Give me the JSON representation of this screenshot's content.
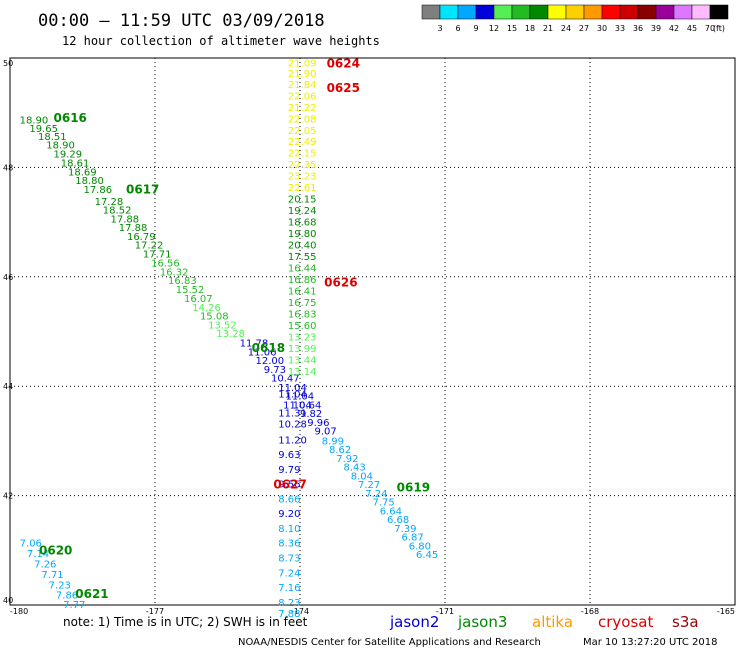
{
  "title": "00:00 – 11:59 UTC 03/09/2018",
  "subtitle": "12 hour collection of altimeter wave heights",
  "legend": {
    "unit": "(ft)",
    "bins": [
      {
        "label": "3",
        "color": "#7f7f7f"
      },
      {
        "label": "6",
        "color": "#00e5ff"
      },
      {
        "label": "9",
        "color": "#00a8ff"
      },
      {
        "label": "12",
        "color": "#0000dd"
      },
      {
        "label": "15",
        "color": "#55ee55"
      },
      {
        "label": "18",
        "color": "#22bb22"
      },
      {
        "label": "21",
        "color": "#008800"
      },
      {
        "label": "24",
        "color": "#ffff00"
      },
      {
        "label": "27",
        "color": "#ffd000"
      },
      {
        "label": "30",
        "color": "#ff9900"
      },
      {
        "label": "33",
        "color": "#ff0000"
      },
      {
        "label": "36",
        "color": "#cc0000"
      },
      {
        "label": "39",
        "color": "#880000"
      },
      {
        "label": "42",
        "color": "#990099"
      },
      {
        "label": "45",
        "color": "#dd77ff"
      },
      {
        "label": "70",
        "color": "#ffbbff"
      },
      {
        "label": "",
        "color": "#000000"
      }
    ]
  },
  "note": "note: 1) Time is in UTC; 2) SWH is in feet",
  "satellites": [
    {
      "name": "jason2",
      "color": "#0000cc"
    },
    {
      "name": "jason3",
      "color": "#008800"
    },
    {
      "name": "altika",
      "color": "#ff9900"
    },
    {
      "name": "cryosat",
      "color": "#dd0000"
    },
    {
      "name": "s3a",
      "color": "#990000"
    }
  ],
  "footer_left": "NOAA/NESDIS Center for Satellite Applications and Research",
  "footer_right": "Mar 10 13:27:20 UTC 2018",
  "chart_data": {
    "type": "scatter",
    "title": "00:00 – 11:59 UTC 03/09/2018",
    "subtitle": "12 hour collection of altimeter wave heights",
    "xlim": [
      -180,
      -165
    ],
    "ylim": [
      40,
      50
    ],
    "x_ticks": [
      -180,
      -177,
      -174,
      -171,
      -168,
      -165
    ],
    "y_ticks": [
      40,
      42,
      44,
      46,
      48,
      50
    ],
    "x_tick_labels": [
      "-180",
      "-177",
      "-174",
      "-171",
      "-168",
      "-165"
    ],
    "y_tick_labels": [
      "40",
      "42",
      "44",
      "46",
      "48",
      "50"
    ],
    "grid": true,
    "value_unit": "ft",
    "pass_labels": [
      {
        "text": "0624",
        "lon": -173.45,
        "lat": 49.9,
        "color": "#dd0000"
      },
      {
        "text": "0625",
        "lon": -173.45,
        "lat": 49.45,
        "color": "#dd0000"
      },
      {
        "text": "0616",
        "lon": -179.1,
        "lat": 48.9,
        "color": "#008800"
      },
      {
        "text": "0617",
        "lon": -177.6,
        "lat": 47.6,
        "color": "#008800"
      },
      {
        "text": "0626",
        "lon": -173.5,
        "lat": 45.9,
        "color": "#dd0000"
      },
      {
        "text": "0618",
        "lon": -175.0,
        "lat": 44.7,
        "color": "#008800"
      },
      {
        "text": "0627",
        "lon": -174.55,
        "lat": 42.2,
        "color": "#dd0000"
      },
      {
        "text": "0619",
        "lon": -172.0,
        "lat": 42.15,
        "color": "#008800"
      },
      {
        "text": "0620",
        "lon": -179.4,
        "lat": 41.0,
        "color": "#008800"
      },
      {
        "text": "0621",
        "lon": -178.65,
        "lat": 40.2,
        "color": "#008800"
      }
    ],
    "series": [
      {
        "name": "0616",
        "points": [
          {
            "lon": -179.8,
            "lat": 48.86,
            "v": "18.90",
            "color": "#008800"
          },
          {
            "lon": -179.6,
            "lat": 48.7,
            "v": "19.65",
            "color": "#008800"
          },
          {
            "lon": -179.42,
            "lat": 48.56,
            "v": "18.51",
            "color": "#008800"
          },
          {
            "lon": -179.25,
            "lat": 48.4,
            "v": "18.90",
            "color": "#008800"
          },
          {
            "lon": -179.1,
            "lat": 48.24,
            "v": "19.29",
            "color": "#008800"
          },
          {
            "lon": -178.95,
            "lat": 48.07,
            "v": "18.61",
            "color": "#008800"
          },
          {
            "lon": -178.8,
            "lat": 47.91,
            "v": "18.69",
            "color": "#008800"
          },
          {
            "lon": -178.65,
            "lat": 47.75,
            "v": "18.80",
            "color": "#008800"
          },
          {
            "lon": -178.48,
            "lat": 47.59,
            "v": "17.86",
            "color": "#008800"
          }
        ]
      },
      {
        "name": "0617",
        "points": [
          {
            "lon": -178.25,
            "lat": 47.37,
            "v": "17.28",
            "color": "#008800"
          },
          {
            "lon": -178.08,
            "lat": 47.21,
            "v": "18.52",
            "color": "#008800"
          },
          {
            "lon": -177.92,
            "lat": 47.05,
            "v": "17.88",
            "color": "#008800"
          },
          {
            "lon": -177.75,
            "lat": 46.89,
            "v": "17.88",
            "color": "#008800"
          },
          {
            "lon": -177.58,
            "lat": 46.73,
            "v": "16.79",
            "color": "#008800"
          },
          {
            "lon": -177.42,
            "lat": 46.57,
            "v": "17.22",
            "color": "#008800"
          },
          {
            "lon": -177.25,
            "lat": 46.41,
            "v": "17.71",
            "color": "#008800"
          },
          {
            "lon": -177.08,
            "lat": 46.24,
            "v": "16.56",
            "color": "#22bb22"
          },
          {
            "lon": -176.9,
            "lat": 46.08,
            "v": "16.32",
            "color": "#22bb22"
          },
          {
            "lon": -176.73,
            "lat": 45.92,
            "v": "16.83",
            "color": "#22bb22"
          },
          {
            "lon": -176.57,
            "lat": 45.76,
            "v": "15.52",
            "color": "#22bb22"
          },
          {
            "lon": -176.4,
            "lat": 45.59,
            "v": "16.07",
            "color": "#22bb22"
          },
          {
            "lon": -176.23,
            "lat": 45.43,
            "v": "14.26",
            "color": "#55ee55"
          },
          {
            "lon": -176.07,
            "lat": 45.27,
            "v": "15.08",
            "color": "#22bb22"
          },
          {
            "lon": -175.9,
            "lat": 45.11,
            "v": "13.52",
            "color": "#55ee55"
          },
          {
            "lon": -175.73,
            "lat": 44.95,
            "v": "13.28",
            "color": "#55ee55"
          }
        ]
      },
      {
        "name": "0618",
        "points": [
          {
            "lon": -175.25,
            "lat": 44.78,
            "v": "11.78",
            "color": "#0000dd"
          },
          {
            "lon": -175.08,
            "lat": 44.62,
            "v": "11.06",
            "color": "#0000dd"
          },
          {
            "lon": -174.92,
            "lat": 44.46,
            "v": "12.00",
            "color": "#0000dd"
          },
          {
            "lon": -174.75,
            "lat": 44.3,
            "v": "9.73",
            "color": "#0000dd"
          },
          {
            "lon": -174.6,
            "lat": 44.14,
            "v": "10.47",
            "color": "#0000dd"
          },
          {
            "lon": -174.45,
            "lat": 43.97,
            "v": "11.04",
            "color": "#0000dd"
          },
          {
            "lon": -174.3,
            "lat": 43.81,
            "v": "11.04",
            "color": "#0000dd"
          },
          {
            "lon": -174.15,
            "lat": 43.65,
            "v": "10.64",
            "color": "#0000dd"
          },
          {
            "lon": -174.0,
            "lat": 43.49,
            "v": "9.82",
            "color": "#0000dd"
          },
          {
            "lon": -173.85,
            "lat": 43.33,
            "v": "9.96",
            "color": "#0000dd"
          },
          {
            "lon": -173.7,
            "lat": 43.17,
            "v": "9.07",
            "color": "#0000dd"
          },
          {
            "lon": -173.55,
            "lat": 42.99,
            "v": "8.99",
            "color": "#00a8ff"
          },
          {
            "lon": -173.4,
            "lat": 42.83,
            "v": "8.62",
            "color": "#00a8ff"
          },
          {
            "lon": -173.25,
            "lat": 42.67,
            "v": "7.92",
            "color": "#00a8ff"
          },
          {
            "lon": -173.1,
            "lat": 42.51,
            "v": "8.43",
            "color": "#00a8ff"
          },
          {
            "lon": -172.95,
            "lat": 42.35,
            "v": "8.04",
            "color": "#00a8ff"
          },
          {
            "lon": -172.8,
            "lat": 42.19,
            "v": "7.27",
            "color": "#00a8ff"
          },
          {
            "lon": -172.65,
            "lat": 42.03,
            "v": "7.24",
            "color": "#00a8ff"
          },
          {
            "lon": -172.5,
            "lat": 41.87,
            "v": "7.75",
            "color": "#00a8ff"
          },
          {
            "lon": -172.35,
            "lat": 41.71,
            "v": "6.64",
            "color": "#00a8ff"
          },
          {
            "lon": -172.2,
            "lat": 41.55,
            "v": "6.68",
            "color": "#00a8ff"
          },
          {
            "lon": -172.05,
            "lat": 41.39,
            "v": "7.39",
            "color": "#00a8ff"
          },
          {
            "lon": -171.9,
            "lat": 41.23,
            "v": "6.87",
            "color": "#00a8ff"
          },
          {
            "lon": -171.75,
            "lat": 41.07,
            "v": "6.80",
            "color": "#00a8ff"
          },
          {
            "lon": -171.6,
            "lat": 40.91,
            "v": "6.45",
            "color": "#00a8ff"
          }
        ]
      },
      {
        "name": "0624",
        "points": [
          {
            "lon": -174.25,
            "lat": 49.9,
            "v": "21.09",
            "color": "#eeee00"
          },
          {
            "lon": -174.25,
            "lat": 49.71,
            "v": "21.90",
            "color": "#eeee00"
          },
          {
            "lon": -174.25,
            "lat": 49.51,
            "v": "21.84",
            "color": "#eeee00"
          },
          {
            "lon": -174.25,
            "lat": 49.3,
            "v": "22.06",
            "color": "#eeee00"
          },
          {
            "lon": -174.25,
            "lat": 49.09,
            "v": "21.22",
            "color": "#eeee00"
          },
          {
            "lon": -174.25,
            "lat": 48.88,
            "v": "22.08",
            "color": "#eeee00"
          },
          {
            "lon": -174.25,
            "lat": 48.67,
            "v": "22.05",
            "color": "#eeee00"
          },
          {
            "lon": -174.25,
            "lat": 48.46,
            "v": "22.49",
            "color": "#eeee00"
          },
          {
            "lon": -174.25,
            "lat": 48.25,
            "v": "22.15",
            "color": "#eeee00"
          },
          {
            "lon": -174.25,
            "lat": 48.04,
            "v": "22.35",
            "color": "#eeee00"
          },
          {
            "lon": -174.25,
            "lat": 47.83,
            "v": "23.23",
            "color": "#eeee00"
          },
          {
            "lon": -174.25,
            "lat": 47.62,
            "v": "22.61",
            "color": "#eeee00"
          },
          {
            "lon": -174.25,
            "lat": 47.41,
            "v": "20.15",
            "color": "#008800"
          },
          {
            "lon": -174.25,
            "lat": 47.2,
            "v": "19.24",
            "color": "#008800"
          },
          {
            "lon": -174.25,
            "lat": 46.99,
            "v": "18.68",
            "color": "#008800"
          },
          {
            "lon": -174.25,
            "lat": 46.78,
            "v": "19.80",
            "color": "#008800"
          },
          {
            "lon": -174.25,
            "lat": 46.57,
            "v": "20.40",
            "color": "#008800"
          },
          {
            "lon": -174.25,
            "lat": 46.36,
            "v": "17.55",
            "color": "#008800"
          },
          {
            "lon": -174.25,
            "lat": 46.15,
            "v": "16.44",
            "color": "#22bb22"
          },
          {
            "lon": -174.25,
            "lat": 45.94,
            "v": "16.86",
            "color": "#22bb22"
          },
          {
            "lon": -174.25,
            "lat": 45.73,
            "v": "16.41",
            "color": "#22bb22"
          },
          {
            "lon": -174.25,
            "lat": 45.52,
            "v": "16.75",
            "color": "#22bb22"
          },
          {
            "lon": -174.25,
            "lat": 45.31,
            "v": "16.83",
            "color": "#22bb22"
          },
          {
            "lon": -174.25,
            "lat": 45.1,
            "v": "15.60",
            "color": "#22bb22"
          },
          {
            "lon": -174.25,
            "lat": 44.89,
            "v": "13.23",
            "color": "#55ee55"
          },
          {
            "lon": -174.25,
            "lat": 44.68,
            "v": "13.99",
            "color": "#55ee55"
          },
          {
            "lon": -174.25,
            "lat": 44.47,
            "v": "13.44",
            "color": "#55ee55"
          },
          {
            "lon": -174.25,
            "lat": 44.26,
            "v": "13.14",
            "color": "#55ee55"
          },
          {
            "lon": -174.35,
            "lat": 43.65,
            "v": "11.04",
            "color": "#0000dd"
          },
          {
            "lon": -174.45,
            "lat": 43.85,
            "v": "11.04",
            "color": "#0000dd"
          },
          {
            "lon": -174.45,
            "lat": 43.5,
            "v": "11.31",
            "color": "#0000dd"
          },
          {
            "lon": -174.45,
            "lat": 43.3,
            "v": "10.28",
            "color": "#0000dd"
          },
          {
            "lon": -174.45,
            "lat": 43.01,
            "v": "11.20",
            "color": "#0000dd"
          },
          {
            "lon": -174.45,
            "lat": 42.74,
            "v": "9.63",
            "color": "#0000dd"
          },
          {
            "lon": -174.45,
            "lat": 42.47,
            "v": "9.79",
            "color": "#0000dd"
          },
          {
            "lon": -174.45,
            "lat": 42.2,
            "v": "9.56",
            "color": "#0000dd"
          },
          {
            "lon": -174.45,
            "lat": 41.93,
            "v": "8.66",
            "color": "#00a8ff"
          },
          {
            "lon": -174.45,
            "lat": 41.66,
            "v": "9.20",
            "color": "#0000dd"
          },
          {
            "lon": -174.45,
            "lat": 41.39,
            "v": "8.10",
            "color": "#00a8ff"
          },
          {
            "lon": -174.45,
            "lat": 41.12,
            "v": "8.36",
            "color": "#00a8ff"
          },
          {
            "lon": -174.45,
            "lat": 40.85,
            "v": "8.73",
            "color": "#00a8ff"
          },
          {
            "lon": -174.45,
            "lat": 40.58,
            "v": "7.24",
            "color": "#00a8ff"
          },
          {
            "lon": -174.45,
            "lat": 40.31,
            "v": "7.16",
            "color": "#00a8ff"
          },
          {
            "lon": -174.45,
            "lat": 40.04,
            "v": "8.23",
            "color": "#00a8ff"
          },
          {
            "lon": -174.45,
            "lat": 39.84,
            "v": "7.88",
            "color": "#00a8ff"
          }
        ]
      },
      {
        "name": "0620",
        "points": [
          {
            "lon": -179.8,
            "lat": 41.12,
            "v": "7.06",
            "color": "#00a8ff"
          },
          {
            "lon": -179.65,
            "lat": 40.93,
            "v": "7.14",
            "color": "#00a8ff"
          },
          {
            "lon": -179.5,
            "lat": 40.74,
            "v": "7.26",
            "color": "#00a8ff"
          },
          {
            "lon": -179.35,
            "lat": 40.55,
            "v": "7.71",
            "color": "#00a8ff"
          },
          {
            "lon": -179.2,
            "lat": 40.36,
            "v": "7.23",
            "color": "#00a8ff"
          },
          {
            "lon": -179.05,
            "lat": 40.17,
            "v": "7.86",
            "color": "#00a8ff"
          },
          {
            "lon": -178.9,
            "lat": 40.0,
            "v": "7.77",
            "color": "#00a8ff"
          }
        ]
      }
    ]
  }
}
